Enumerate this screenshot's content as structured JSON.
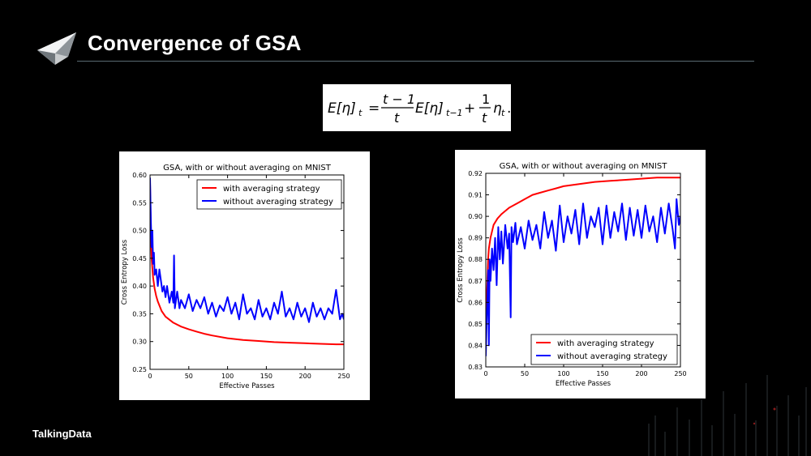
{
  "slide": {
    "title": "Convergence of GSA",
    "brand": "TalkingData",
    "formula": {
      "lhs": "E[η]",
      "lhs_sub": "t",
      "frac1_num": "t − 1",
      "frac1_den": "t",
      "mid": "E[η]",
      "mid_sub": "t−1",
      "frac2_num": "1",
      "frac2_den": "t",
      "tail": "η",
      "tail_sub": "t"
    }
  },
  "chart_data": [
    {
      "type": "line",
      "title": "GSA, with or without averaging on MNIST",
      "xlabel": "Effective Passes",
      "ylabel": "Cross Entropy Loss",
      "xlim": [
        0,
        250
      ],
      "ylim": [
        0.25,
        0.6
      ],
      "xticks": [
        0,
        50,
        100,
        150,
        200,
        250
      ],
      "yticks": [
        0.25,
        0.3,
        0.35,
        0.4,
        0.45,
        0.5,
        0.55,
        0.6
      ],
      "ytick_labels": [
        "0.25",
        "0.30",
        "0.35",
        "0.40",
        "0.45",
        "0.50",
        "0.55",
        "0.60"
      ],
      "legend_position": "top-right",
      "series": [
        {
          "name": "with averaging strategy",
          "color": "#ff0000",
          "x": [
            0,
            1,
            2,
            4,
            6,
            8,
            10,
            15,
            20,
            30,
            40,
            50,
            60,
            70,
            80,
            100,
            120,
            140,
            160,
            180,
            200,
            220,
            240,
            250
          ],
          "y": [
            0.585,
            0.5,
            0.45,
            0.415,
            0.395,
            0.382,
            0.372,
            0.355,
            0.345,
            0.334,
            0.327,
            0.322,
            0.318,
            0.314,
            0.311,
            0.306,
            0.303,
            0.301,
            0.299,
            0.298,
            0.297,
            0.296,
            0.295,
            0.295
          ]
        },
        {
          "name": "without averaging strategy",
          "color": "#0000ff",
          "x": [
            0,
            1,
            2,
            3,
            4,
            5,
            6,
            8,
            10,
            12,
            14,
            16,
            18,
            20,
            22,
            25,
            28,
            30,
            31,
            32,
            35,
            38,
            40,
            45,
            50,
            55,
            60,
            65,
            70,
            75,
            80,
            85,
            90,
            95,
            100,
            105,
            110,
            115,
            120,
            125,
            130,
            135,
            140,
            145,
            150,
            155,
            160,
            165,
            170,
            175,
            180,
            185,
            190,
            195,
            200,
            205,
            210,
            215,
            220,
            225,
            230,
            235,
            240,
            245,
            248,
            250
          ],
          "y": [
            0.595,
            0.52,
            0.47,
            0.5,
            0.44,
            0.46,
            0.42,
            0.43,
            0.4,
            0.43,
            0.41,
            0.39,
            0.4,
            0.38,
            0.4,
            0.37,
            0.39,
            0.37,
            0.455,
            0.36,
            0.39,
            0.36,
            0.375,
            0.36,
            0.385,
            0.355,
            0.375,
            0.36,
            0.38,
            0.35,
            0.37,
            0.345,
            0.365,
            0.355,
            0.38,
            0.35,
            0.37,
            0.34,
            0.385,
            0.35,
            0.36,
            0.34,
            0.375,
            0.345,
            0.36,
            0.34,
            0.37,
            0.35,
            0.39,
            0.345,
            0.36,
            0.34,
            0.37,
            0.345,
            0.36,
            0.335,
            0.37,
            0.345,
            0.36,
            0.34,
            0.36,
            0.35,
            0.393,
            0.34,
            0.35,
            0.34
          ]
        }
      ]
    },
    {
      "type": "line",
      "title": "GSA, with or without averaging on MNIST",
      "xlabel": "Effective Passes",
      "ylabel": "Cross Entropy Loss",
      "xlim": [
        0,
        250
      ],
      "ylim": [
        0.83,
        0.92
      ],
      "xticks": [
        0,
        50,
        100,
        150,
        200,
        250
      ],
      "yticks": [
        0.83,
        0.84,
        0.85,
        0.86,
        0.87,
        0.88,
        0.89,
        0.9,
        0.91,
        0.92
      ],
      "ytick_labels": [
        "0.83",
        "0.84",
        "0.85",
        "0.86",
        "0.87",
        "0.88",
        "0.89",
        "0.90",
        "0.91",
        "0.92"
      ],
      "legend_position": "bottom-right",
      "series": [
        {
          "name": "with averaging strategy",
          "color": "#ff0000",
          "x": [
            0,
            1,
            2,
            3,
            4,
            6,
            8,
            10,
            15,
            20,
            30,
            40,
            50,
            60,
            70,
            80,
            90,
            100,
            120,
            140,
            160,
            180,
            200,
            220,
            240,
            250
          ],
          "y": [
            0.84,
            0.86,
            0.87,
            0.88,
            0.885,
            0.89,
            0.893,
            0.896,
            0.899,
            0.901,
            0.904,
            0.906,
            0.908,
            0.91,
            0.911,
            0.912,
            0.913,
            0.914,
            0.915,
            0.916,
            0.9165,
            0.917,
            0.9175,
            0.918,
            0.918,
            0.918
          ]
        },
        {
          "name": "without averaging strategy",
          "color": "#0000ff",
          "x": [
            0,
            1,
            2,
            3,
            4,
            5,
            6,
            8,
            10,
            12,
            14,
            16,
            18,
            20,
            22,
            25,
            28,
            30,
            32,
            33,
            35,
            38,
            40,
            45,
            50,
            55,
            60,
            65,
            70,
            75,
            80,
            85,
            90,
            95,
            100,
            105,
            110,
            115,
            120,
            125,
            130,
            135,
            140,
            145,
            150,
            155,
            160,
            165,
            170,
            175,
            180,
            185,
            190,
            195,
            200,
            205,
            210,
            215,
            220,
            225,
            230,
            235,
            240,
            243,
            245,
            248,
            250
          ],
          "y": [
            0.835,
            0.85,
            0.86,
            0.875,
            0.84,
            0.88,
            0.87,
            0.885,
            0.875,
            0.89,
            0.868,
            0.895,
            0.88,
            0.893,
            0.878,
            0.896,
            0.885,
            0.892,
            0.853,
            0.895,
            0.888,
            0.897,
            0.887,
            0.895,
            0.885,
            0.898,
            0.889,
            0.896,
            0.885,
            0.902,
            0.89,
            0.898,
            0.884,
            0.905,
            0.888,
            0.9,
            0.892,
            0.903,
            0.887,
            0.906,
            0.89,
            0.9,
            0.895,
            0.904,
            0.887,
            0.905,
            0.89,
            0.902,
            0.893,
            0.906,
            0.889,
            0.904,
            0.891,
            0.903,
            0.89,
            0.905,
            0.893,
            0.9,
            0.888,
            0.904,
            0.892,
            0.906,
            0.894,
            0.885,
            0.908,
            0.896,
            0.9
          ]
        }
      ]
    }
  ]
}
